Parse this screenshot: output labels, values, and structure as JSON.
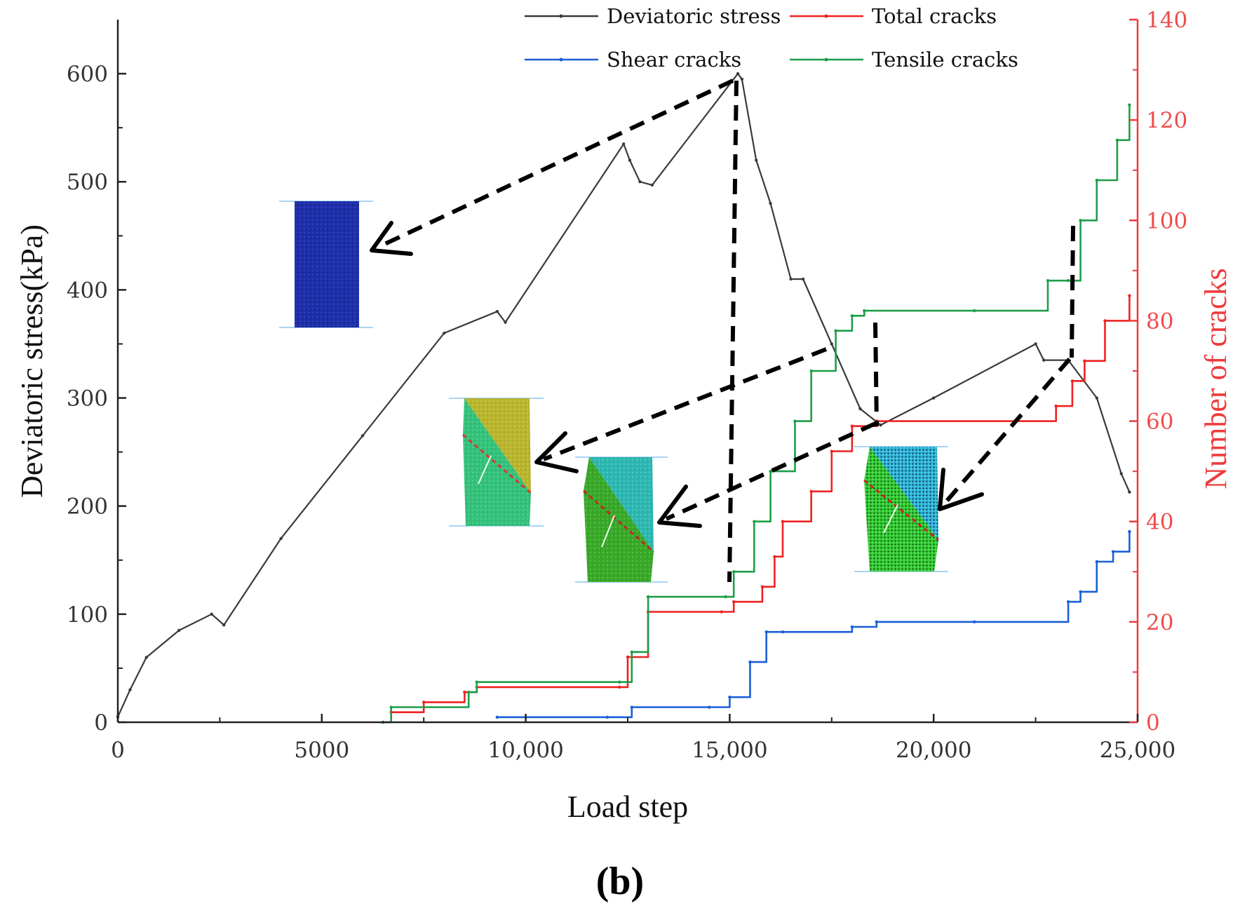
{
  "chart_data": {
    "type": "line",
    "panel_label": "(b)",
    "xlabel": "Load step",
    "ylabel_left": "Deviatoric stress(kPa)",
    "ylabel_right": "Number of cracks",
    "xlim": [
      0,
      25000
    ],
    "ylim_left": [
      0,
      650
    ],
    "ylim_right": [
      0,
      140
    ],
    "x_ticks": [
      0,
      5000,
      10000,
      15000,
      20000,
      25000
    ],
    "x_tick_labels": [
      "0",
      "5000",
      "10,000",
      "15,000",
      "20,000",
      "25,000"
    ],
    "y_left_ticks": [
      0,
      100,
      200,
      300,
      400,
      500,
      600
    ],
    "y_left_tick_labels": [
      "0",
      "100",
      "200",
      "300",
      "400",
      "500",
      "600"
    ],
    "y_right_ticks": [
      0,
      20,
      40,
      60,
      80,
      100,
      120,
      140
    ],
    "y_right_tick_labels": [
      "0",
      "20",
      "40",
      "60",
      "80",
      "100",
      "120",
      "140"
    ],
    "legend": [
      {
        "label": "Deviatoric stress",
        "color": "#3a3a3a"
      },
      {
        "label": "Total cracks",
        "color": "#ee2222"
      },
      {
        "label": "Shear cracks",
        "color": "#1a5fd6"
      },
      {
        "label": "Tensile cracks",
        "color": "#1d9e48"
      }
    ],
    "series": [
      {
        "name": "Deviatoric stress",
        "axis": "left",
        "color": "#3a3a3a",
        "x": [
          0,
          300,
          700,
          1500,
          2300,
          2600,
          4000,
          6000,
          8000,
          9300,
          9500,
          12400,
          12550,
          12800,
          13100,
          15200,
          15300,
          15650,
          16000,
          16500,
          16800,
          17500,
          18200,
          18700,
          20000,
          22500,
          22700,
          23300,
          24000,
          24600,
          24800
        ],
        "y": [
          5,
          30,
          60,
          85,
          100,
          90,
          170,
          265,
          360,
          380,
          370,
          535,
          520,
          500,
          497,
          600,
          595,
          520,
          480,
          410,
          410,
          350,
          290,
          275,
          300,
          350,
          335,
          335,
          300,
          230,
          213
        ]
      },
      {
        "name": "Total cracks",
        "axis": "right",
        "color": "#ee2222",
        "x": [
          6500,
          6700,
          7500,
          8500,
          8800,
          12300,
          12500,
          13000,
          14800,
          15100,
          15800,
          16100,
          16300,
          17000,
          17500,
          18000,
          18600,
          22000,
          23000,
          23400,
          23700,
          24200,
          24800
        ],
        "y": [
          0,
          2,
          4,
          6,
          7,
          7,
          13,
          22,
          22,
          24,
          27,
          33,
          40,
          46,
          54,
          59,
          60,
          60,
          63,
          68,
          72,
          80,
          85
        ]
      },
      {
        "name": "Shear cracks",
        "axis": "right",
        "color": "#1a5fd6",
        "x": [
          9300,
          12000,
          12600,
          14500,
          15000,
          15500,
          15900,
          16300,
          18000,
          18600,
          21000,
          23300,
          23600,
          24000,
          24400,
          24800
        ],
        "y": [
          1,
          1,
          3,
          3,
          5,
          12,
          18,
          18,
          19,
          20,
          20,
          24,
          26,
          32,
          34,
          38
        ]
      },
      {
        "name": "Tensile cracks",
        "axis": "right",
        "color": "#1d9e48",
        "x": [
          6500,
          6700,
          8600,
          8800,
          12300,
          12600,
          13000,
          14900,
          15100,
          15600,
          16000,
          16600,
          17000,
          17600,
          18000,
          18300,
          21000,
          22800,
          23300,
          23600,
          24000,
          24500,
          24800
        ],
        "y": [
          0,
          3,
          6,
          8,
          8,
          14,
          25,
          25,
          30,
          40,
          50,
          60,
          70,
          78,
          81,
          82,
          82,
          88,
          88,
          100,
          108,
          116,
          123
        ]
      }
    ]
  }
}
